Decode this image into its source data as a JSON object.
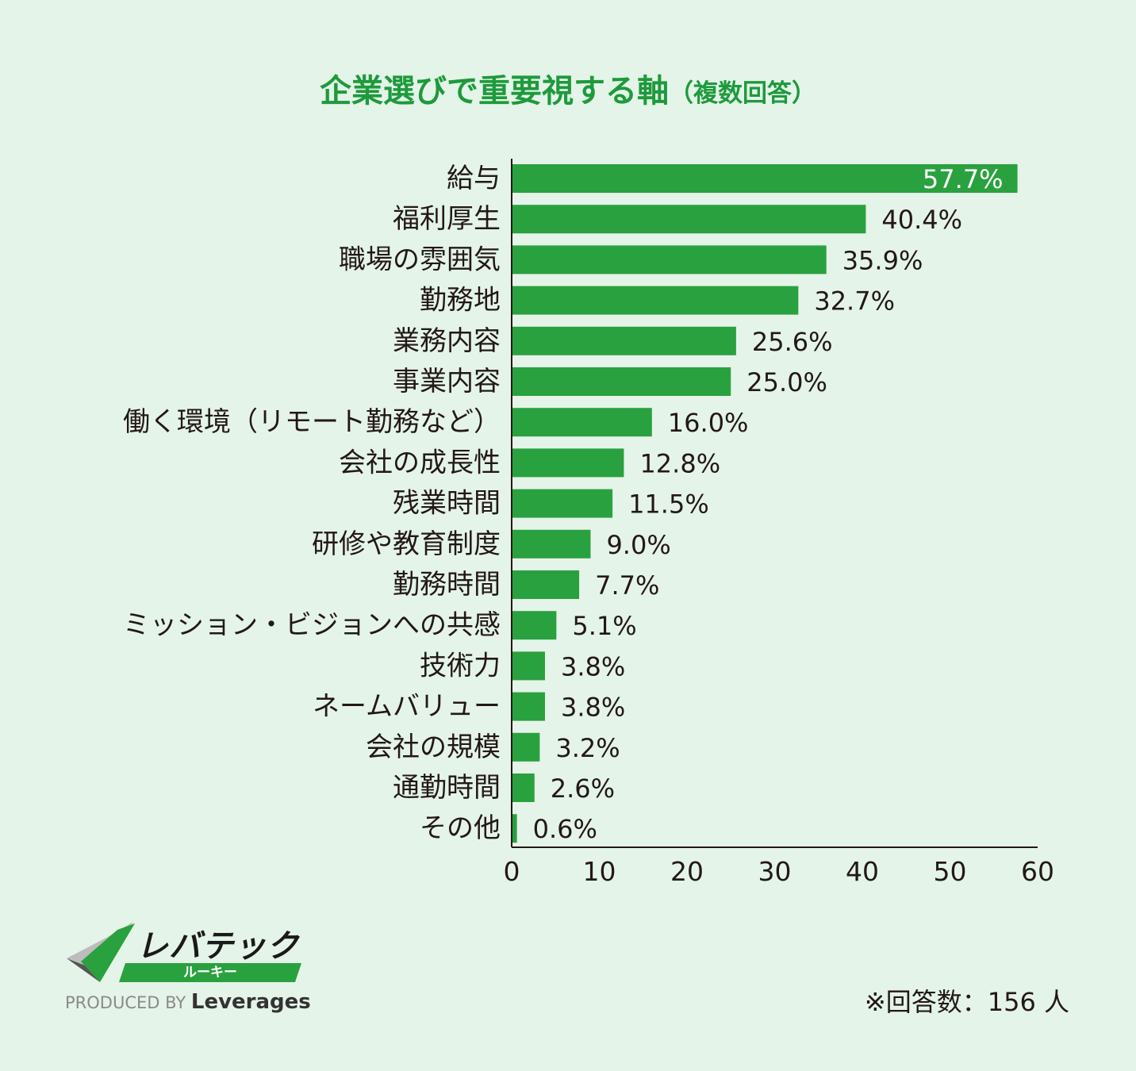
{
  "header": {
    "title": "企業選びで重要視する軸",
    "subtitle": "（複数回答）"
  },
  "colors": {
    "background": "#e4f4e8",
    "bar": "#2aa13f",
    "title": "#1e9a3c"
  },
  "chart_data": {
    "type": "bar",
    "orientation": "horizontal",
    "title": "企業選びで重要視する軸（複数回答）",
    "categories": [
      "給与",
      "福利厚生",
      "職場の雰囲気",
      "勤務地",
      "業務内容",
      "事業内容",
      "働く環境（リモート勤務など）",
      "会社の成長性",
      "残業時間",
      "研修や教育制度",
      "勤務時間",
      "ミッション・ビジョンへの共感",
      "技術力",
      "ネームバリュー",
      "会社の規模",
      "通勤時間",
      "その他"
    ],
    "values": [
      57.7,
      40.4,
      35.9,
      32.7,
      25.6,
      25.0,
      16.0,
      12.8,
      11.5,
      9.0,
      7.7,
      5.1,
      3.8,
      3.8,
      3.2,
      2.6,
      0.6
    ],
    "value_labels": [
      "57.7%",
      "40.4%",
      "35.9%",
      "32.7%",
      "25.6%",
      "25.0%",
      "16.0%",
      "12.8%",
      "11.5%",
      "9.0%",
      "7.7%",
      "5.1%",
      "3.8%",
      "3.8%",
      "3.2%",
      "2.6%",
      "0.6%"
    ],
    "xlim": [
      0,
      60
    ],
    "xticks": [
      "0",
      "10",
      "20",
      "30",
      "40",
      "50",
      "60"
    ],
    "xlabel": "",
    "ylabel": "",
    "grid": false
  },
  "brand": {
    "name": "レバテック",
    "sub": "ルーキー",
    "produced_by": "PRODUCED BY",
    "company": "Leverages"
  },
  "footnote": "※回答数：156 人"
}
